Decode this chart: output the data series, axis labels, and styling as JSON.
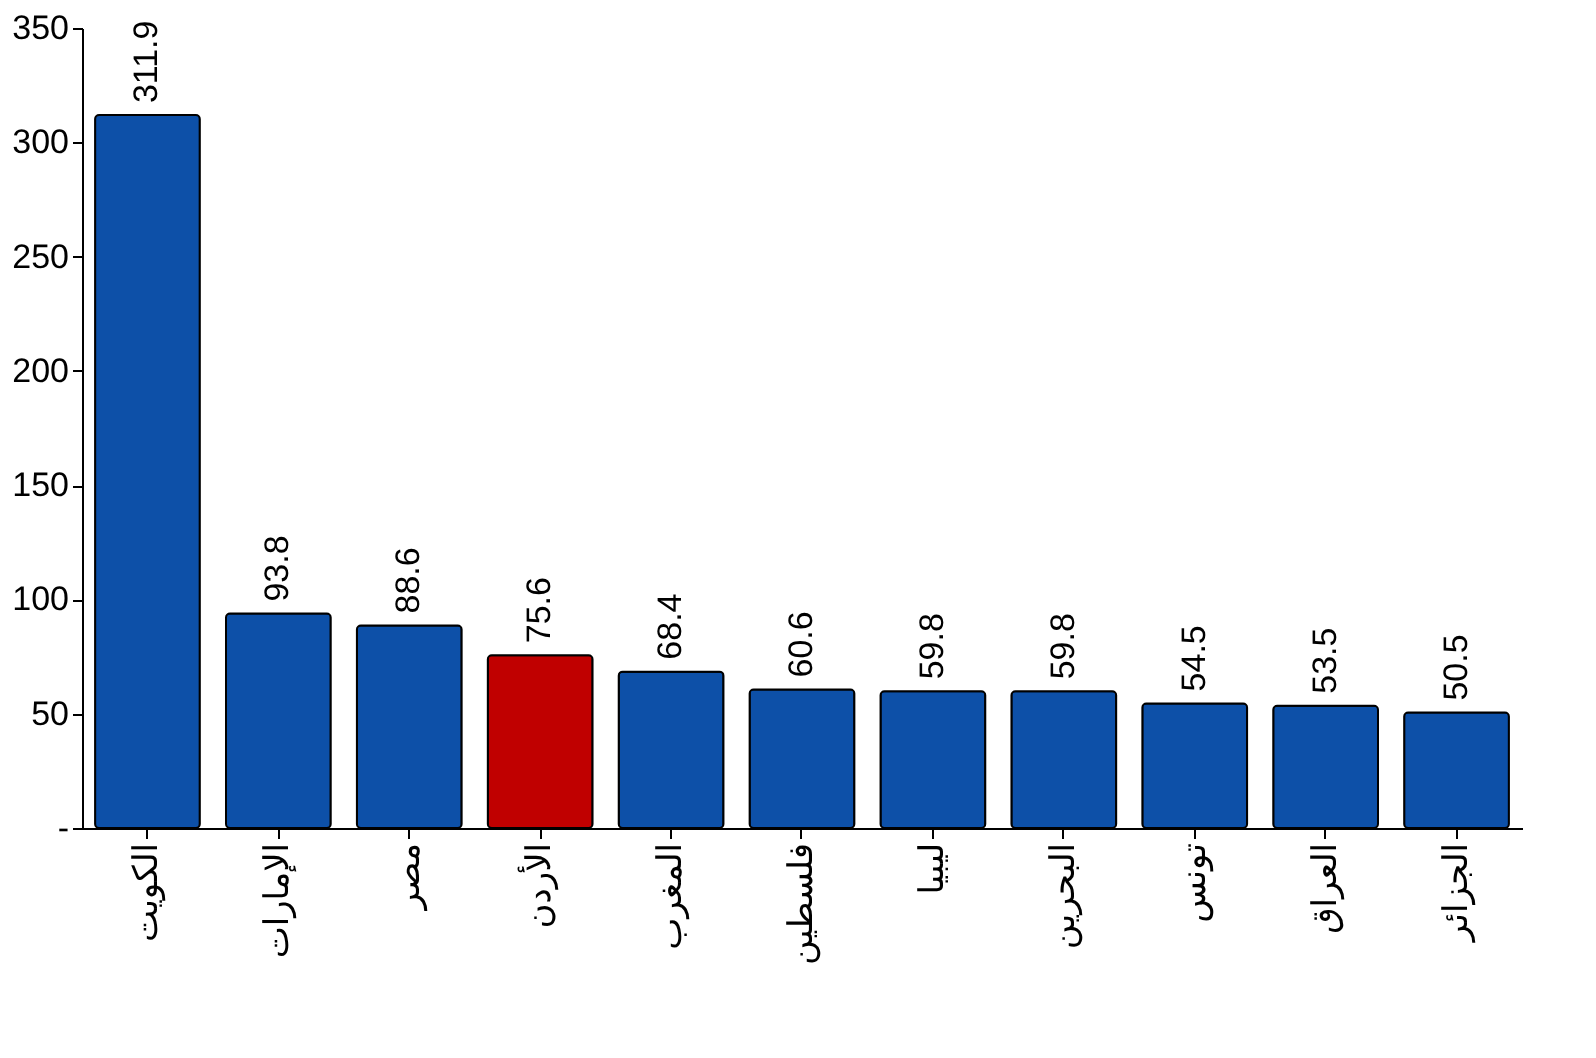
{
  "chart_data": {
    "type": "bar",
    "categories": [
      "الكويت",
      "الإمارات",
      "مصر",
      "الأردن",
      "المغرب",
      "فلسطين",
      "ليبيا",
      "البحرين",
      "تونس",
      "العراق",
      "الجزائر"
    ],
    "values": [
      311.9,
      93.8,
      88.6,
      75.6,
      68.4,
      60.6,
      59.8,
      59.8,
      54.5,
      53.5,
      50.5
    ],
    "colors": [
      "#0d50a8",
      "#0d50a8",
      "#0d50a8",
      "#c00000",
      "#0d50a8",
      "#0d50a8",
      "#0d50a8",
      "#0d50a8",
      "#0d50a8",
      "#0d50a8",
      "#0d50a8"
    ],
    "ylim": [
      0,
      350
    ],
    "yticks": [
      {
        "value": 0,
        "label": "-"
      },
      50,
      100,
      150,
      200,
      250,
      300,
      350
    ],
    "data_labels": true,
    "grid": false
  }
}
